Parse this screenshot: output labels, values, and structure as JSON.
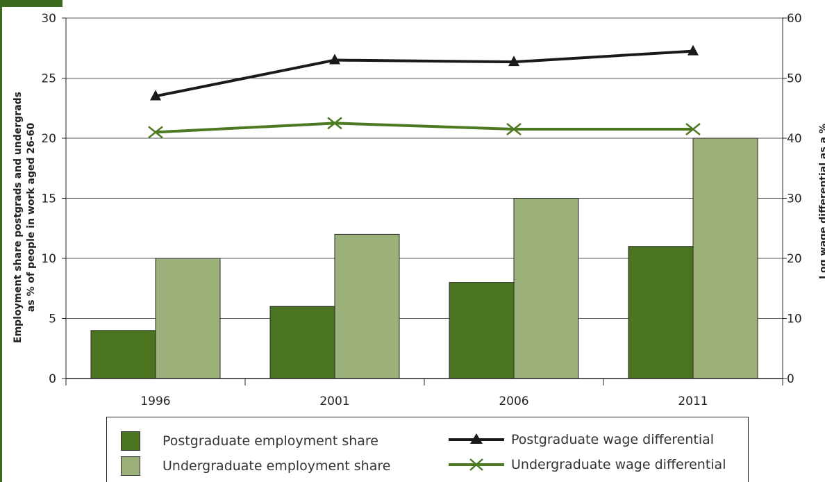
{
  "colors": {
    "post_bar": "#4a7420",
    "under_bar": "#9cb07a",
    "post_line": "#1a1a1a",
    "under_line": "#4d7a21",
    "accent": "#3d6b1e"
  },
  "chart_data": {
    "type": "bar+line",
    "categories": [
      "1996",
      "2001",
      "2006",
      "2011"
    ],
    "y_left": {
      "label_line1": "Employment share postgrads and undergrads",
      "label_line2": "as % of people in work aged 26-60",
      "range": [
        0,
        30
      ],
      "ticks": [
        "0",
        "5",
        "10",
        "15",
        "20",
        "25",
        "30"
      ]
    },
    "y_right": {
      "label": "Log wage differential as a %",
      "range": [
        0,
        60
      ],
      "ticks": [
        "0",
        "10",
        "20",
        "30",
        "40",
        "50",
        "60"
      ]
    },
    "bar_series": [
      {
        "name": "Postgraduate employment share",
        "values": [
          4,
          6,
          8,
          11
        ]
      },
      {
        "name": "Undergraduate employment share",
        "values": [
          10,
          12,
          15,
          20
        ]
      }
    ],
    "line_series": [
      {
        "name": "Postgraduate wage differential",
        "marker": "triangle",
        "values": [
          47,
          53,
          52.7,
          54.5
        ]
      },
      {
        "name": "Undergraduate wage differential",
        "marker": "x",
        "values": [
          41,
          42.5,
          41.5,
          41.5
        ]
      }
    ],
    "legend_placement": "bottom",
    "grid": "horizontal"
  }
}
